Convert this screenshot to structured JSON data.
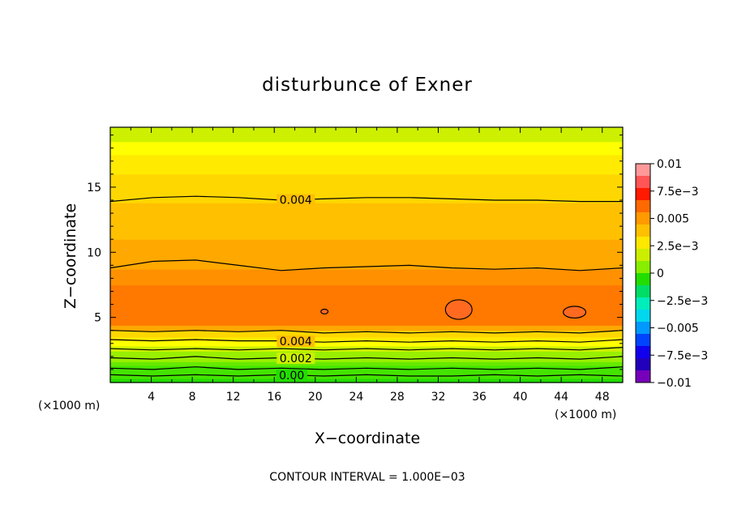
{
  "chart_data": {
    "type": "heatmap",
    "title": "disturbunce of Exner",
    "xlabel": "X−coordinate",
    "ylabel": "Z−coordinate",
    "x_unit": "(×1000 m)",
    "y_unit": "(×1000 m)",
    "xlim": [
      0,
      50
    ],
    "ylim": [
      0,
      19.6
    ],
    "x_ticks": [
      4,
      8,
      12,
      16,
      20,
      24,
      28,
      32,
      36,
      40,
      44,
      48
    ],
    "x_tick_labels": [
      "4",
      "8",
      "12",
      "16",
      "20",
      "24",
      "28",
      "32",
      "36",
      "40",
      "44",
      "48"
    ],
    "y_ticks": [
      5,
      10,
      15
    ],
    "y_tick_labels": [
      "5",
      "10",
      "15"
    ],
    "footnote": "CONTOUR INTERVAL = 1.000E−03",
    "contour_interval": 0.001,
    "colorbar": {
      "range": [
        -0.01,
        0.01
      ],
      "tick_values": [
        0.01,
        0.0075,
        0.005,
        0.0025,
        0,
        -0.0025,
        -0.005,
        -0.0075,
        -0.01
      ],
      "tick_labels": [
        "0.01",
        "7.5e−3",
        "0.005",
        "2.5e−3",
        "0",
        "−2.5e−3",
        "−0.005",
        "−7.5e−3",
        "−0.01"
      ],
      "colors": [
        "#ff9999",
        "#ff5555",
        "#ff1a00",
        "#ff6a00",
        "#ff9a00",
        "#ffc000",
        "#ffe800",
        "#ccee00",
        "#88ee00",
        "#22dd00",
        "#00dd66",
        "#00eebb",
        "#00d8ee",
        "#0099ff",
        "#0044ff",
        "#1100ee",
        "#2200bb",
        "#7700bb"
      ]
    },
    "fill_colors": {
      "0.0005": "#22dd00",
      "0.0010": "#44e400",
      "0.0015": "#66ea00",
      "0.0020": "#99ef00",
      "0.0025": "#ccf000",
      "0.0030": "#ffff00",
      "0.0035": "#ffea00",
      "0.0040": "#ffd700",
      "0.0045": "#ffc000",
      "0.0050": "#ffa800",
      "0.0055": "#ff9000",
      "0.0060": "#ff7800",
      "0.0065": "#ff5a1a"
    },
    "z_levels": [
      0,
      0.3,
      0.6,
      0.9,
      1.3,
      1.6,
      2.0,
      2.4,
      2.8,
      3.2,
      3.5,
      4.0,
      4.4,
      5.0,
      6.0,
      6.5,
      7.5,
      8.7,
      10.0,
      11.0,
      12.0,
      13.8,
      16.0,
      17.5,
      18.5,
      19.6
    ],
    "profile_values": [
      0.0005,
      0.0008,
      0.001,
      0.0012,
      0.0016,
      0.0019,
      0.0022,
      0.0026,
      0.003,
      0.0035,
      0.0042,
      0.0052,
      0.0058,
      0.0061,
      0.006,
      0.0058,
      0.0054,
      0.0051,
      0.0049,
      0.0046,
      0.0043,
      0.004,
      0.0034,
      0.003,
      0.0025,
      0.0023
    ],
    "contours": [
      {
        "level": 0.0,
        "label": "0.00",
        "z": [
          0.6,
          0.5,
          0.6,
          0.5,
          0.6,
          0.5,
          0.6,
          0.5,
          0.5,
          0.6,
          0.5,
          0.6,
          0.5
        ],
        "label_x": 17.7
      },
      {
        "level": 0.001,
        "label": "",
        "z": [
          1.1,
          1.0,
          1.2,
          1.0,
          1.1,
          1.0,
          1.1,
          1.0,
          1.1,
          1.0,
          1.1,
          1.0,
          1.2
        ],
        "label_x": null
      },
      {
        "level": 0.002,
        "label": "0.002",
        "z": [
          1.9,
          1.8,
          2.0,
          1.8,
          1.9,
          1.8,
          1.9,
          1.8,
          1.9,
          1.8,
          1.9,
          1.8,
          2.0
        ],
        "label_x": 18.1
      },
      {
        "level": 0.003,
        "label": "",
        "z": [
          2.6,
          2.5,
          2.6,
          2.5,
          2.6,
          2.5,
          2.6,
          2.5,
          2.6,
          2.5,
          2.6,
          2.5,
          2.7
        ],
        "label_x": null
      },
      {
        "level": 0.004,
        "label": "0.004",
        "z": [
          3.3,
          3.2,
          3.3,
          3.2,
          3.2,
          3.1,
          3.2,
          3.1,
          3.2,
          3.1,
          3.2,
          3.1,
          3.3
        ],
        "label_x": 18.1
      },
      {
        "level": 0.005,
        "label": "",
        "z": [
          4.0,
          3.9,
          4.0,
          3.9,
          4.0,
          3.8,
          3.9,
          3.8,
          3.9,
          3.8,
          3.9,
          3.8,
          4.0
        ],
        "label_x": null
      },
      {
        "level": 0.005,
        "label": "",
        "z": [
          8.8,
          9.3,
          9.4,
          9.0,
          8.6,
          8.8,
          8.9,
          9.0,
          8.8,
          8.7,
          8.8,
          8.6,
          8.8
        ],
        "label_x": null
      },
      {
        "level": 0.004,
        "label": "0.004",
        "z": [
          13.9,
          14.2,
          14.3,
          14.2,
          14.0,
          14.1,
          14.2,
          14.2,
          14.1,
          14.0,
          14.0,
          13.9,
          13.9
        ],
        "label_x": 18.1
      }
    ],
    "closed_contours": [
      {
        "level": 0.006,
        "cx": 34.0,
        "cz": 5.6,
        "rx": 1.3,
        "rz": 0.75
      },
      {
        "level": 0.006,
        "cx": 45.3,
        "cz": 5.4,
        "rx": 1.1,
        "rz": 0.45
      },
      {
        "level": 0.006,
        "cx": 20.9,
        "cz": 5.45,
        "rx": 0.35,
        "rz": 0.18
      }
    ]
  }
}
